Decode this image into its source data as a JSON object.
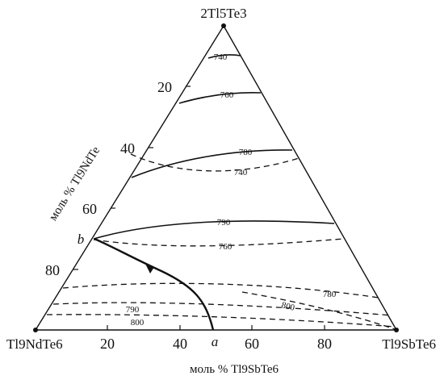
{
  "vertices": {
    "top": "2Tl5Te3",
    "left": "Tl9NdTe6",
    "right": "Tl9SbTe6"
  },
  "axes": {
    "left_title": "моль % Tl9NdTe",
    "bottom_title": "моль % Tl9SbTe6",
    "left_ticks": [
      "20",
      "40",
      "60",
      "80"
    ],
    "bottom_ticks": [
      "20",
      "40",
      "60",
      "80"
    ]
  },
  "points": {
    "a": "a",
    "b": "b"
  },
  "isotherms": {
    "t740_upper": "740",
    "t760_upper": "760",
    "t780_upper": "780",
    "t740_dashed": "740",
    "t790_upper": "790",
    "t760_dashed": "760",
    "t780_lower": "780",
    "t800_mid": "800",
    "t790_lower": "790",
    "t800_lower": "800"
  }
}
